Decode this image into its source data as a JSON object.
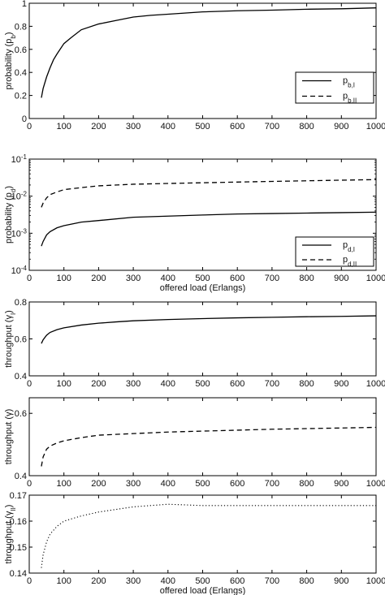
{
  "chart_data": [
    {
      "type": "line",
      "title": "",
      "xlabel": "",
      "ylabel": "probability (p_b)",
      "xlim": [
        0,
        1000
      ],
      "ylim": [
        0,
        1
      ],
      "yscale": "linear",
      "xticks": [
        "0",
        "100",
        "200",
        "300",
        "400",
        "500",
        "600",
        "700",
        "800",
        "900",
        "1000"
      ],
      "yticks": [
        {
          "v": 0,
          "label": "0"
        },
        {
          "v": 0.2,
          "label": "0.2"
        },
        {
          "v": 0.4,
          "label": "0.4"
        },
        {
          "v": 0.6,
          "label": "0.6"
        },
        {
          "v": 0.8,
          "label": "0.8"
        },
        {
          "v": 1,
          "label": "1"
        }
      ],
      "grid": false,
      "legend": "bottom-right",
      "legend_entries": [
        {
          "main": "p",
          "sub": "b,I",
          "style": "solid"
        },
        {
          "main": "p",
          "sub": "b,II",
          "style": "dashed"
        }
      ],
      "series": [
        {
          "style": "solid",
          "x": [
            35,
            40,
            50,
            60,
            70,
            80,
            100,
            120,
            150,
            200,
            250,
            300,
            350,
            400,
            500,
            600,
            700,
            800,
            900,
            1000
          ],
          "y": [
            0.18,
            0.26,
            0.36,
            0.44,
            0.51,
            0.56,
            0.65,
            0.7,
            0.77,
            0.82,
            0.85,
            0.88,
            0.895,
            0.905,
            0.925,
            0.935,
            0.94,
            0.948,
            0.952,
            0.96
          ]
        }
      ]
    },
    {
      "type": "line",
      "title": "",
      "xlabel": "offered load (Erlangs)",
      "ylabel": "probability (p_d)",
      "xlim": [
        0,
        1000
      ],
      "ylim": [
        0.0001,
        0.1
      ],
      "yscale": "log",
      "xticks": [
        "0",
        "100",
        "200",
        "300",
        "400",
        "500",
        "600",
        "700",
        "800",
        "900",
        "1000"
      ],
      "yticks": [
        {
          "v": 0.0001,
          "label": "10-4"
        },
        {
          "v": 0.001,
          "label": "10-3"
        },
        {
          "v": 0.01,
          "label": "10-2"
        },
        {
          "v": 0.1,
          "label": "10-1"
        }
      ],
      "grid": false,
      "legend": "bottom-right",
      "legend_entries": [
        {
          "main": "p",
          "sub": "d,I",
          "style": "solid"
        },
        {
          "main": "p",
          "sub": "d,II",
          "style": "dashed"
        }
      ],
      "series": [
        {
          "style": "solid",
          "x": [
            35,
            40,
            50,
            60,
            80,
            100,
            150,
            200,
            300,
            400,
            500,
            600,
            700,
            800,
            900,
            1000
          ],
          "y": [
            0.00045,
            0.0006,
            0.0009,
            0.0011,
            0.0014,
            0.0016,
            0.002,
            0.0022,
            0.0027,
            0.0029,
            0.0031,
            0.0033,
            0.0034,
            0.0035,
            0.0036,
            0.0037
          ]
        },
        {
          "style": "dashed",
          "x": [
            35,
            40,
            50,
            60,
            80,
            100,
            150,
            200,
            300,
            400,
            500,
            600,
            700,
            800,
            900,
            1000
          ],
          "y": [
            0.005,
            0.0065,
            0.009,
            0.011,
            0.013,
            0.015,
            0.017,
            0.019,
            0.021,
            0.022,
            0.023,
            0.024,
            0.025,
            0.026,
            0.027,
            0.028
          ]
        }
      ]
    },
    {
      "type": "line",
      "title": "",
      "xlabel": "",
      "ylabel": "throughput (γ_I)",
      "xlim": [
        0,
        1000
      ],
      "ylim": [
        0.4,
        0.8
      ],
      "yscale": "linear",
      "xticks": [
        "0",
        "100",
        "200",
        "300",
        "400",
        "500",
        "600",
        "700",
        "800",
        "900",
        "1000"
      ],
      "yticks": [
        {
          "v": 0.4,
          "label": "0.4"
        },
        {
          "v": 0.6,
          "label": "0.6"
        },
        {
          "v": 0.8,
          "label": "0.8"
        }
      ],
      "grid": false,
      "legend": "none",
      "series": [
        {
          "style": "solid",
          "x": [
            35,
            40,
            50,
            60,
            80,
            100,
            150,
            200,
            250,
            300,
            400,
            500,
            600,
            700,
            800,
            900,
            1000
          ],
          "y": [
            0.575,
            0.595,
            0.62,
            0.635,
            0.65,
            0.66,
            0.675,
            0.685,
            0.692,
            0.698,
            0.705,
            0.71,
            0.714,
            0.717,
            0.72,
            0.722,
            0.725
          ]
        }
      ]
    },
    {
      "type": "line",
      "title": "",
      "xlabel": "",
      "ylabel": "throughput (γ)",
      "xlim": [
        0,
        1000
      ],
      "ylim": [
        0.4,
        0.65
      ],
      "yscale": "linear",
      "xticks": [
        "0",
        "100",
        "200",
        "300",
        "400",
        "500",
        "600",
        "700",
        "800",
        "900",
        "1000"
      ],
      "yticks": [
        {
          "v": 0.4,
          "label": "0.4"
        },
        {
          "v": 0.6,
          "label": "0.6"
        }
      ],
      "grid": false,
      "legend": "none",
      "series": [
        {
          "style": "dashed",
          "x": [
            35,
            40,
            50,
            60,
            80,
            100,
            150,
            200,
            300,
            400,
            500,
            600,
            700,
            800,
            900,
            1000
          ],
          "y": [
            0.43,
            0.46,
            0.485,
            0.495,
            0.505,
            0.512,
            0.522,
            0.53,
            0.535,
            0.54,
            0.543,
            0.546,
            0.549,
            0.551,
            0.553,
            0.555
          ]
        }
      ]
    },
    {
      "type": "line",
      "title": "",
      "xlabel": "offered load (Erlangs)",
      "ylabel": "throughput (γ_II)",
      "xlim": [
        0,
        1000
      ],
      "ylim": [
        0.14,
        0.17
      ],
      "yscale": "linear",
      "xticks": [
        "0",
        "100",
        "200",
        "300",
        "400",
        "500",
        "600",
        "700",
        "800",
        "900",
        "1000"
      ],
      "yticks": [
        {
          "v": 0.14,
          "label": "0.14"
        },
        {
          "v": 0.15,
          "label": "0.15"
        },
        {
          "v": 0.16,
          "label": "0.16"
        },
        {
          "v": 0.17,
          "label": "0.17"
        }
      ],
      "grid": false,
      "legend": "none",
      "series": [
        {
          "style": "dotted",
          "x": [
            35,
            40,
            50,
            60,
            80,
            100,
            150,
            200,
            250,
            300,
            350,
            400,
            500,
            600,
            700,
            800,
            900,
            1000
          ],
          "y": [
            0.142,
            0.147,
            0.152,
            0.155,
            0.158,
            0.16,
            0.162,
            0.1635,
            0.1645,
            0.1655,
            0.166,
            0.1665,
            0.166,
            0.166,
            0.166,
            0.166,
            0.166,
            0.166
          ]
        }
      ]
    }
  ]
}
